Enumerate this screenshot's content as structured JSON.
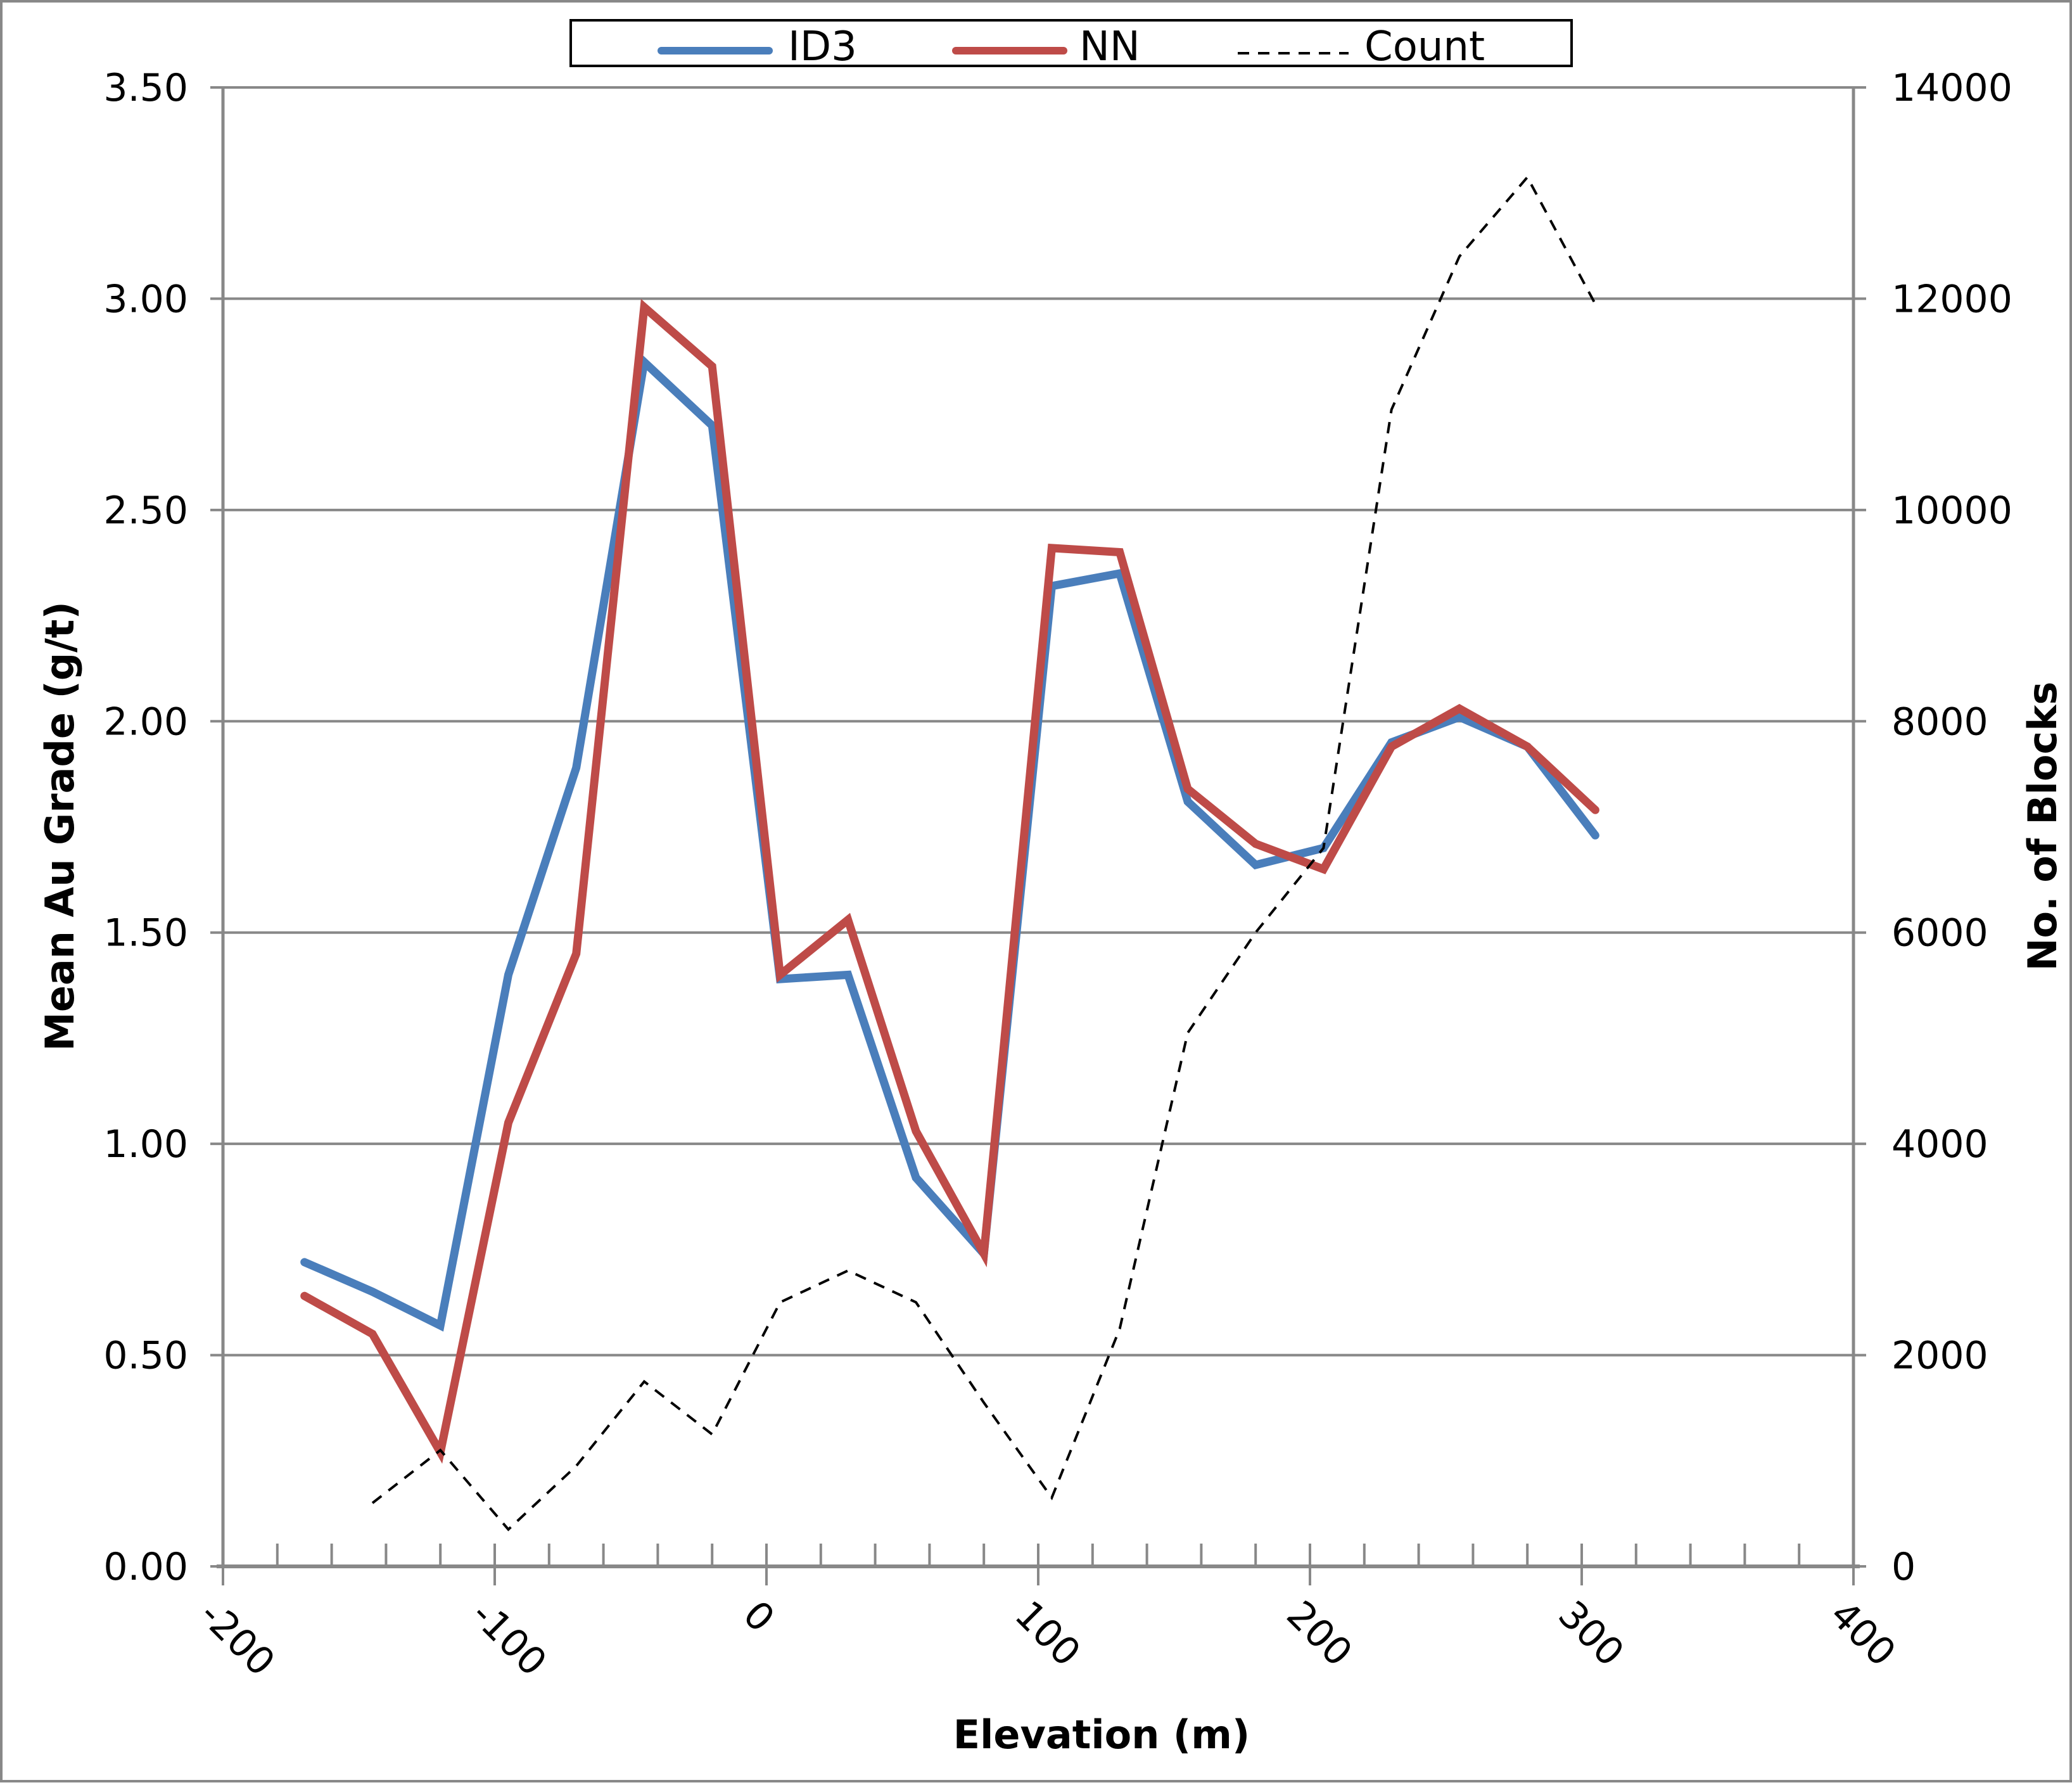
{
  "chart_data": {
    "type": "line",
    "title": "",
    "xlabel": "Elevation (m)",
    "ylabel": "Mean Au Grade (g/t)",
    "y2label": "No. of Blocks",
    "xlim": [
      -200,
      400
    ],
    "ylim": [
      0,
      3.5
    ],
    "y2lim": [
      0,
      14000
    ],
    "x_ticks": [
      "-200",
      "-100",
      "0",
      "100",
      "200",
      "300",
      "400"
    ],
    "y_ticks": [
      "0.00",
      "0.50",
      "1.00",
      "1.50",
      "2.00",
      "2.50",
      "3.00",
      "3.50"
    ],
    "y2_ticks": [
      "0",
      "2000",
      "4000",
      "6000",
      "8000",
      "10000",
      "12000",
      "14000"
    ],
    "grid": "horizontal major",
    "legend_position": "top",
    "x": [
      -170,
      -145,
      -120,
      -95,
      -70,
      -45,
      -20,
      5,
      30,
      55,
      80,
      105,
      130,
      155,
      180,
      205,
      230,
      255,
      280,
      305
    ],
    "series": [
      {
        "name": "ID3",
        "axis": "left",
        "color": "#4a7ebb",
        "style": "solid",
        "values": [
          0.72,
          0.65,
          0.57,
          1.4,
          1.89,
          2.85,
          2.7,
          1.39,
          1.4,
          0.92,
          0.74,
          2.32,
          2.35,
          1.81,
          1.66,
          1.7,
          1.95,
          2.01,
          1.94,
          1.73
        ]
      },
      {
        "name": "NN",
        "axis": "left",
        "color": "#be4b48",
        "style": "solid",
        "values": [
          0.64,
          0.55,
          0.27,
          1.05,
          1.45,
          2.98,
          2.84,
          1.4,
          1.53,
          1.03,
          0.74,
          2.41,
          2.4,
          1.84,
          1.71,
          1.65,
          1.94,
          2.03,
          1.94,
          1.79
        ]
      },
      {
        "name": "Count",
        "axis": "right",
        "color": "#000000",
        "style": "dashed",
        "values": [
          null,
          600,
          1100,
          350,
          950,
          1750,
          1250,
          2500,
          2800,
          2500,
          1550,
          650,
          2250,
          5050,
          6000,
          6800,
          10950,
          12400,
          13150,
          11950
        ]
      }
    ]
  },
  "legend": {
    "items": [
      {
        "label": "ID3",
        "color": "#4a7ebb",
        "style": "solid"
      },
      {
        "label": "NN",
        "color": "#be4b48",
        "style": "solid"
      },
      {
        "label": "Count",
        "color": "#000000",
        "style": "dashed"
      }
    ]
  },
  "colors": {
    "grid": "#888888",
    "axis": "#888888",
    "border": "#888888"
  }
}
